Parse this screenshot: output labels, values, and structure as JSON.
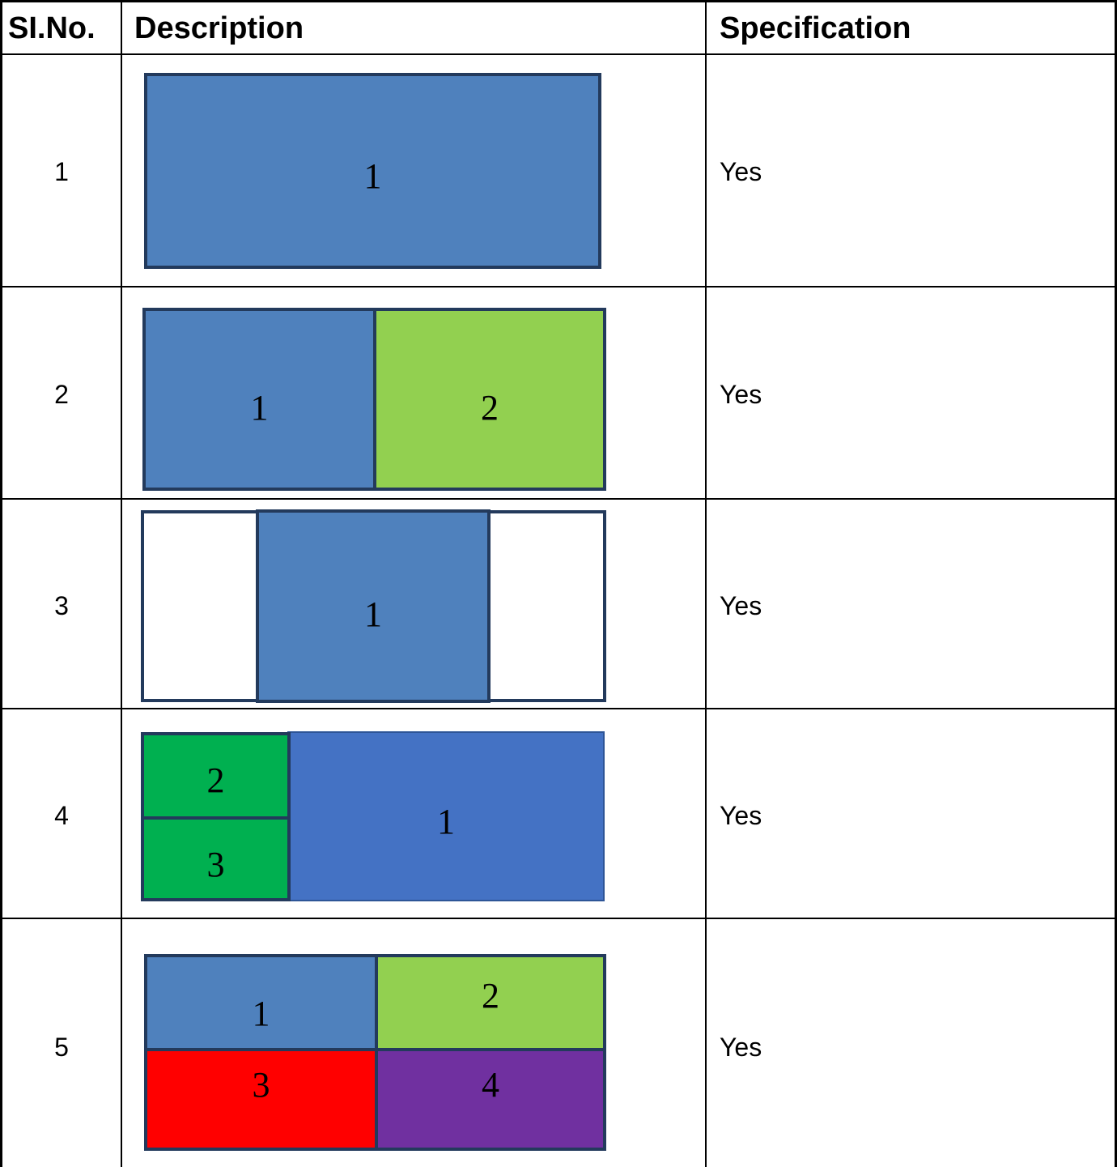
{
  "header": {
    "col1": "SI.No.",
    "col2": "Description",
    "col3": "Specification"
  },
  "rows": [
    {
      "sl": "1",
      "spec": "Yes",
      "boxes": [
        {
          "label": "1",
          "color": "#4f81bd"
        }
      ]
    },
    {
      "sl": "2",
      "spec": "Yes",
      "boxes": [
        {
          "label": "1",
          "color": "#4f81bd"
        },
        {
          "label": "2",
          "color": "#92d050"
        }
      ]
    },
    {
      "sl": "3",
      "spec": "Yes",
      "boxes": [
        {
          "label": "",
          "color": "#ffffff"
        },
        {
          "label": "1",
          "color": "#4f81bd"
        },
        {
          "label": "",
          "color": "#ffffff"
        }
      ]
    },
    {
      "sl": "4",
      "spec": "Yes",
      "boxes": [
        {
          "label": "2",
          "color": "#00b050"
        },
        {
          "label": "3",
          "color": "#00b050"
        },
        {
          "label": "1",
          "color": "#4472c4"
        }
      ]
    },
    {
      "sl": "5",
      "spec": "Yes",
      "boxes": [
        {
          "label": "1",
          "color": "#4f81bd"
        },
        {
          "label": "2",
          "color": "#92d050"
        },
        {
          "label": "3",
          "color": "#ff0000"
        },
        {
          "label": "4",
          "color": "#7030a0"
        }
      ]
    }
  ]
}
